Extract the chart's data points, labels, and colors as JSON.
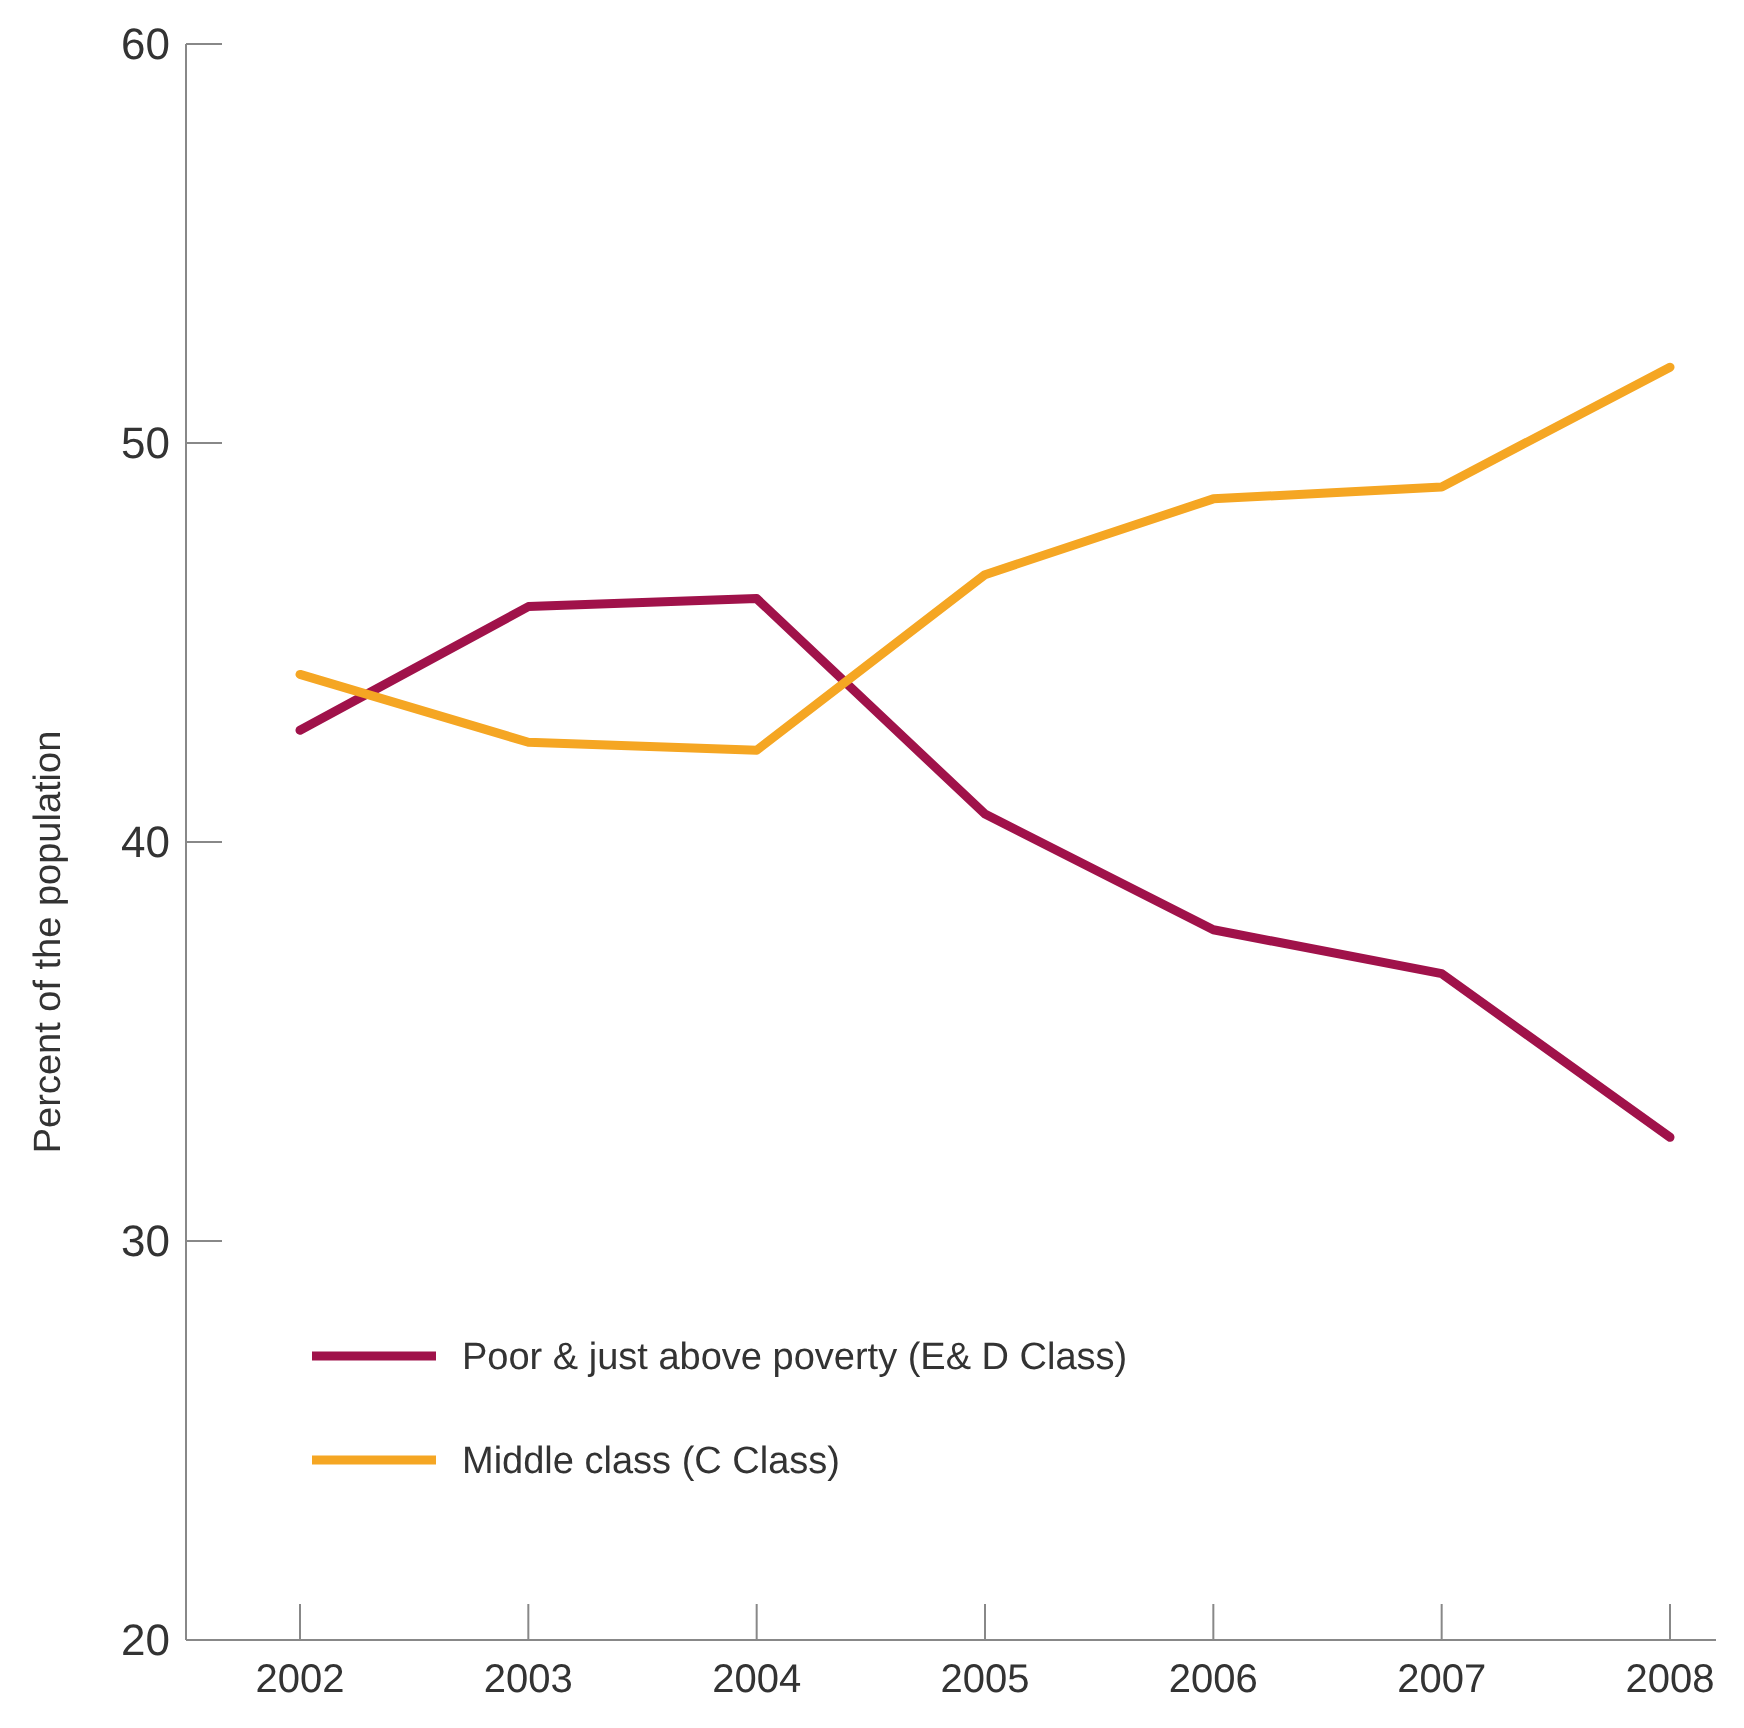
{
  "chart_data": {
    "type": "line",
    "ylabel": "Percent of the population",
    "categories": [
      "2002",
      "2003",
      "2004",
      "2005",
      "2006",
      "2007",
      "2008"
    ],
    "series": [
      {
        "name": "Poor & just above poverty (E& D Class)",
        "color": "#a0124a",
        "values": [
          42.8,
          45.9,
          46.1,
          40.7,
          37.8,
          36.7,
          32.6
        ]
      },
      {
        "name": "Middle class (C Class)",
        "color": "#f5a623",
        "values": [
          44.2,
          42.5,
          42.3,
          46.7,
          48.6,
          48.9,
          51.9
        ]
      }
    ],
    "ylim": [
      20,
      60
    ],
    "yticks": [
      20,
      30,
      40,
      50,
      60
    ],
    "grid": false,
    "legend": "bottom left",
    "marker": "none",
    "line_style": "solid"
  }
}
